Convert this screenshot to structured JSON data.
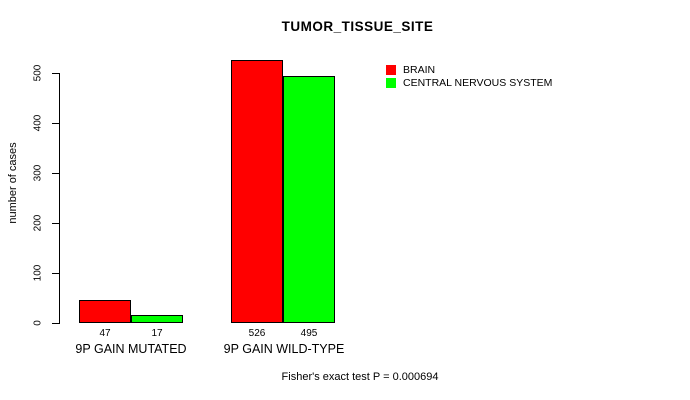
{
  "chart_data": {
    "type": "bar",
    "title": "TUMOR_TISSUE_SITE",
    "categories": [
      "9P GAIN MUTATED",
      "9P GAIN WILD-TYPE"
    ],
    "series": [
      {
        "name": "BRAIN",
        "color": "#ff0000",
        "values": [
          47,
          526
        ]
      },
      {
        "name": "CENTRAL NERVOUS SYSTEM",
        "color": "#00ff00",
        "values": [
          17,
          495
        ]
      }
    ],
    "xlabel": "",
    "ylabel": "number of cases",
    "ylim": [
      0,
      526
    ],
    "yticks": [
      "0",
      "100",
      "200",
      "300",
      "400",
      "500"
    ],
    "grid": false,
    "legend_position": "top-right",
    "bar_border_color": "#000000",
    "annotation": "Fisher's exact test P = 0.000694"
  }
}
